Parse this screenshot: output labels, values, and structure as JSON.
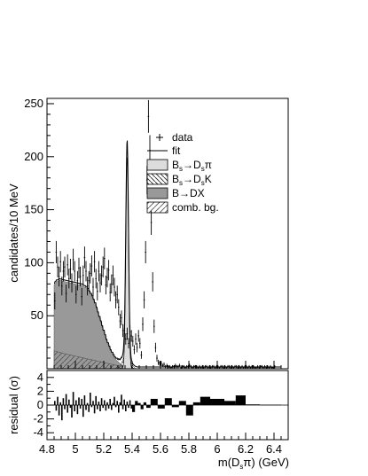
{
  "chart_data": [
    {
      "type": "bar",
      "title": "",
      "ylabel": "candidates/10 MeV",
      "xlabel": "m(D_sπ) (GeV)",
      "xlim": [
        4.8,
        6.5
      ],
      "ylim": [
        0,
        255
      ],
      "y_ticks": [
        50,
        100,
        150,
        200,
        250
      ],
      "legend_position": "top-right",
      "legend": [
        {
          "label": "data",
          "marker": "cross"
        },
        {
          "label": "fit",
          "marker": "line"
        },
        {
          "label": "Bs→Dsπ",
          "marker": "box-light-gray"
        },
        {
          "label": "Bs→DsK",
          "marker": "box-backslash-hatch"
        },
        {
          "label": "B→DX",
          "marker": "box-dark-gray"
        },
        {
          "label": "comb. bg.",
          "marker": "box-slash-hatch"
        }
      ],
      "colors": {
        "bsdspi": "#dcdcdc",
        "bdx": "#999999",
        "data": "#000000",
        "fit": "#000000"
      },
      "x_start": 4.85,
      "bin_width": 0.01,
      "data_values": [
        64,
        110,
        96,
        87,
        101,
        78,
        92,
        96,
        71,
        98,
        85,
        94,
        81,
        103,
        92,
        70,
        83,
        95,
        87,
        68,
        88,
        105,
        92,
        78,
        83,
        90,
        97,
        77,
        101,
        85,
        73,
        92,
        81,
        88,
        96,
        104,
        79,
        86,
        93,
        72,
        80,
        88,
        77,
        65,
        70,
        58,
        45,
        48,
        36,
        33,
        28,
        33,
        24,
        35,
        31,
        26,
        18,
        28,
        20,
        31,
        24,
        13,
        42,
        65,
        110,
        178,
        238,
        206,
        138,
        82,
        40,
        20,
        10,
        6,
        5,
        5,
        3,
        4,
        2,
        3,
        2,
        2,
        1,
        2,
        2,
        3,
        2,
        2,
        3,
        1,
        2,
        2,
        1,
        2,
        2,
        3,
        2,
        1,
        2,
        2,
        2,
        1,
        2,
        1,
        2,
        1,
        2,
        2,
        1,
        2,
        1,
        2,
        2,
        1,
        2,
        2,
        1,
        2,
        2,
        1,
        2,
        1,
        2,
        2,
        1,
        2,
        1,
        2,
        2,
        1,
        2,
        1,
        2,
        1,
        2,
        2,
        1,
        2,
        1,
        2,
        2,
        1,
        1,
        2,
        1,
        2,
        2,
        1,
        2,
        1,
        2,
        1,
        2,
        1,
        1,
        2
      ],
      "comb_bg": [
        17,
        16.6,
        16.2,
        15.8,
        15.4,
        15,
        14.6,
        14.3,
        14,
        13.7,
        13.4,
        13.1,
        12.8,
        12.5,
        12.2,
        11.9,
        11.6,
        11.3,
        11,
        10.7,
        10.4,
        10.1,
        9.8,
        9.5,
        9.2,
        8.9,
        8.6,
        8.3,
        8,
        7.7,
        7.4,
        7.1,
        6.8,
        6.5,
        6.2,
        5.9,
        5.6,
        5.3,
        5,
        4.7,
        4.4,
        4.1,
        3.8,
        3.5,
        3.2,
        2.9,
        2.6,
        2.3,
        2.0,
        1.8,
        1.6,
        1.4,
        1.2,
        1.0,
        0.8,
        0.6,
        0.4,
        0.3,
        0.2,
        0.1
      ],
      "bdx": [
        62,
        64,
        66,
        67,
        68,
        68,
        68,
        68,
        68,
        68,
        68,
        68,
        68,
        68,
        68,
        68,
        68,
        68,
        68,
        68,
        68,
        67,
        67,
        66,
        65,
        63,
        61,
        59,
        56,
        53,
        49,
        45,
        41,
        37,
        33,
        29,
        25,
        21,
        18,
        15,
        12,
        10,
        8,
        6,
        5,
        4,
        3,
        2,
        1,
        1,
        0
      ],
      "bsdsk_peak": 5.36,
      "bsdspi_peak": 5.365,
      "bsdspi_height": 200,
      "bsdspi_width": 0.02
    },
    {
      "type": "bar",
      "title": "",
      "ylabel": "residual (σ)",
      "xlabel": "m(D_sπ) (GeV)",
      "xlim": [
        4.8,
        6.5
      ],
      "ylim": [
        -5,
        5
      ],
      "y_ticks": [
        -4,
        -2,
        0,
        2,
        4
      ],
      "x_ticks": [
        4.8,
        5,
        5.2,
        5.4,
        5.6,
        5.8,
        6,
        6.2,
        6.4
      ],
      "bins": [
        {
          "x0": 4.85,
          "x1": 4.86,
          "v": 0.6
        },
        {
          "x0": 4.86,
          "x1": 4.87,
          "v": -0.8
        },
        {
          "x0": 4.87,
          "x1": 4.88,
          "v": 1.2
        },
        {
          "x0": 4.88,
          "x1": 4.89,
          "v": -1.5
        },
        {
          "x0": 4.89,
          "x1": 4.9,
          "v": 0.4
        },
        {
          "x0": 4.9,
          "x1": 4.91,
          "v": -2.2
        },
        {
          "x0": 4.91,
          "x1": 4.92,
          "v": 1.0
        },
        {
          "x0": 4.92,
          "x1": 4.93,
          "v": -0.6
        },
        {
          "x0": 4.93,
          "x1": 4.94,
          "v": 1.6
        },
        {
          "x0": 4.94,
          "x1": 4.95,
          "v": -1.1
        },
        {
          "x0": 4.95,
          "x1": 4.96,
          "v": 0.8
        },
        {
          "x0": 4.96,
          "x1": 4.97,
          "v": -0.4
        },
        {
          "x0": 4.97,
          "x1": 4.98,
          "v": -1.8
        },
        {
          "x0": 4.98,
          "x1": 4.99,
          "v": 1.9
        },
        {
          "x0": 4.99,
          "x1": 5.0,
          "v": -0.9
        },
        {
          "x0": 5.0,
          "x1": 5.01,
          "v": 0.7
        },
        {
          "x0": 5.01,
          "x1": 5.02,
          "v": -1.3
        },
        {
          "x0": 5.02,
          "x1": 5.03,
          "v": 1.1
        },
        {
          "x0": 5.03,
          "x1": 5.04,
          "v": -0.5
        },
        {
          "x0": 5.04,
          "x1": 5.05,
          "v": 0.9
        },
        {
          "x0": 5.05,
          "x1": 5.06,
          "v": -1.7
        },
        {
          "x0": 5.06,
          "x1": 5.07,
          "v": 1.4
        },
        {
          "x0": 5.07,
          "x1": 5.08,
          "v": -0.7
        },
        {
          "x0": 5.08,
          "x1": 5.09,
          "v": 0.3
        },
        {
          "x0": 5.09,
          "x1": 5.1,
          "v": -1.0
        },
        {
          "x0": 5.1,
          "x1": 5.11,
          "v": 1.8
        },
        {
          "x0": 5.11,
          "x1": 5.12,
          "v": -0.3
        },
        {
          "x0": 5.12,
          "x1": 5.13,
          "v": 0.6
        },
        {
          "x0": 5.13,
          "x1": 5.14,
          "v": -1.2
        },
        {
          "x0": 5.14,
          "x1": 5.15,
          "v": 1.3
        },
        {
          "x0": 5.15,
          "x1": 5.16,
          "v": -0.6
        },
        {
          "x0": 5.16,
          "x1": 5.17,
          "v": 0.5
        },
        {
          "x0": 5.17,
          "x1": 5.18,
          "v": -0.9
        },
        {
          "x0": 5.18,
          "x1": 5.19,
          "v": 1.0
        },
        {
          "x0": 5.19,
          "x1": 5.2,
          "v": -0.4
        },
        {
          "x0": 5.2,
          "x1": 5.21,
          "v": 0.7
        },
        {
          "x0": 5.21,
          "x1": 5.22,
          "v": -0.8
        },
        {
          "x0": 5.22,
          "x1": 5.23,
          "v": 0.4
        },
        {
          "x0": 5.23,
          "x1": 5.24,
          "v": -0.5
        },
        {
          "x0": 5.24,
          "x1": 5.25,
          "v": 0.9
        },
        {
          "x0": 5.25,
          "x1": 5.26,
          "v": -0.7
        },
        {
          "x0": 5.26,
          "x1": 5.27,
          "v": 0.3
        },
        {
          "x0": 5.27,
          "x1": 5.28,
          "v": 1.2
        },
        {
          "x0": 5.28,
          "x1": 5.29,
          "v": -0.3
        },
        {
          "x0": 5.29,
          "x1": 5.3,
          "v": 0.6
        },
        {
          "x0": 5.3,
          "x1": 5.31,
          "v": -1.1
        },
        {
          "x0": 5.31,
          "x1": 5.32,
          "v": 0.4
        },
        {
          "x0": 5.32,
          "x1": 5.33,
          "v": 1.5
        },
        {
          "x0": 5.33,
          "x1": 5.34,
          "v": -0.6
        },
        {
          "x0": 5.34,
          "x1": 5.35,
          "v": 0.8
        },
        {
          "x0": 5.35,
          "x1": 5.36,
          "v": -0.9
        },
        {
          "x0": 5.36,
          "x1": 5.37,
          "v": 0.5
        },
        {
          "x0": 5.37,
          "x1": 5.38,
          "v": -0.4
        },
        {
          "x0": 5.38,
          "x1": 5.39,
          "v": 0.7
        },
        {
          "x0": 5.39,
          "x1": 5.4,
          "v": -0.5
        },
        {
          "x0": 5.4,
          "x1": 5.42,
          "v": -1.0
        },
        {
          "x0": 5.42,
          "x1": 5.44,
          "v": 0.6
        },
        {
          "x0": 5.44,
          "x1": 5.46,
          "v": 0.3
        },
        {
          "x0": 5.46,
          "x1": 5.48,
          "v": -0.6
        },
        {
          "x0": 5.48,
          "x1": 5.5,
          "v": 0.4
        },
        {
          "x0": 5.5,
          "x1": 5.53,
          "v": -0.4
        },
        {
          "x0": 5.53,
          "x1": 5.58,
          "v": 0.9
        },
        {
          "x0": 5.58,
          "x1": 5.63,
          "v": -0.5
        },
        {
          "x0": 5.63,
          "x1": 5.68,
          "v": 1.0
        },
        {
          "x0": 5.68,
          "x1": 5.73,
          "v": -0.3
        },
        {
          "x0": 5.73,
          "x1": 5.78,
          "v": 0.6
        },
        {
          "x0": 5.78,
          "x1": 5.83,
          "v": -1.5
        },
        {
          "x0": 5.83,
          "x1": 5.88,
          "v": 0.4
        },
        {
          "x0": 5.88,
          "x1": 5.95,
          "v": 1.2
        },
        {
          "x0": 5.95,
          "x1": 6.05,
          "v": 0.9
        },
        {
          "x0": 6.05,
          "x1": 6.13,
          "v": 0.6
        },
        {
          "x0": 6.13,
          "x1": 6.2,
          "v": 1.4
        },
        {
          "x0": 6.2,
          "x1": 6.3,
          "v": 0.1
        },
        {
          "x0": 6.3,
          "x1": 6.45,
          "v": 0.05
        }
      ]
    }
  ]
}
